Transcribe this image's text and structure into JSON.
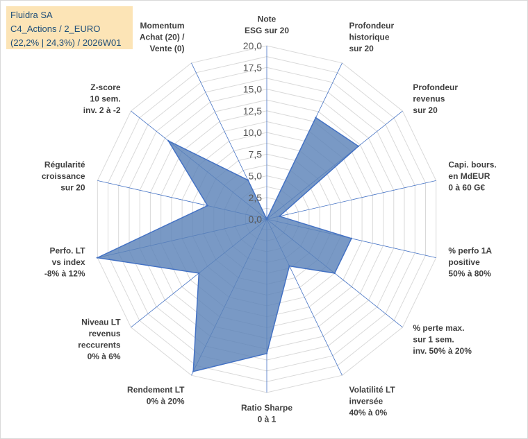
{
  "info_box": {
    "line1": "Fluidra SA",
    "line2": "C4_Actions / 2_EURO",
    "line3": "(22,2% | 24,3%) / 2026W01"
  },
  "colors": {
    "fill": "#5b82b8",
    "stroke": "#4472c4",
    "grid": "#d9d9d9",
    "spoke": "#4472c4"
  },
  "chart_data": {
    "type": "radar",
    "title": "",
    "rlim": [
      0,
      20
    ],
    "tick_values": [
      0,
      2.5,
      5,
      7.5,
      10,
      12.5,
      15,
      17.5,
      20
    ],
    "tick_labels": [
      "0,0",
      "2,5",
      "5,0",
      "7,5",
      "10,0",
      "12,5",
      "15,0",
      "17,5",
      "20,0"
    ],
    "axes": [
      {
        "label": [
          "Note",
          "ESG sur 20"
        ],
        "value": 0
      },
      {
        "label": [
          "Profondeur",
          "historique",
          "sur 20"
        ],
        "value": 13
      },
      {
        "label": [
          "Profondeur",
          "revenus",
          "sur 20"
        ],
        "value": 13.5
      },
      {
        "label": [
          "Capi. bours.",
          "en MdEUR",
          "0 à 60 G€"
        ],
        "value": 1.5
      },
      {
        "label": [
          "% perfo 1A",
          "positive",
          "50% à 80%"
        ],
        "value": 10
      },
      {
        "label": [
          "% perte max.",
          "sur 1 sem.",
          "inv. 50% à 20%"
        ],
        "value": 10
      },
      {
        "label": [
          "Volatilité LT",
          "inversée",
          "40% à 0%"
        ],
        "value": 6
      },
      {
        "label": [
          "Ratio Sharpe",
          "0 à 1"
        ],
        "value": 15.5
      },
      {
        "label": [
          "Rendement LT",
          "0% à 20%"
        ],
        "value": 19.5
      },
      {
        "label": [
          "Niveau LT",
          "revenus",
          "reccurents",
          "0% à 6%"
        ],
        "value": 10
      },
      {
        "label": [
          "Perfo. LT",
          "vs index",
          "-8% à 12%"
        ],
        "value": 20
      },
      {
        "label": [
          "Régularité",
          "croissance",
          "sur 20"
        ],
        "value": 7
      },
      {
        "label": [
          "Z-score",
          "10 sem.",
          "inv. 2 à -2"
        ],
        "value": 14.5
      },
      {
        "label": [
          "Momentum",
          "Achat (20) /",
          "Vente (0)"
        ],
        "value": 5
      }
    ]
  }
}
